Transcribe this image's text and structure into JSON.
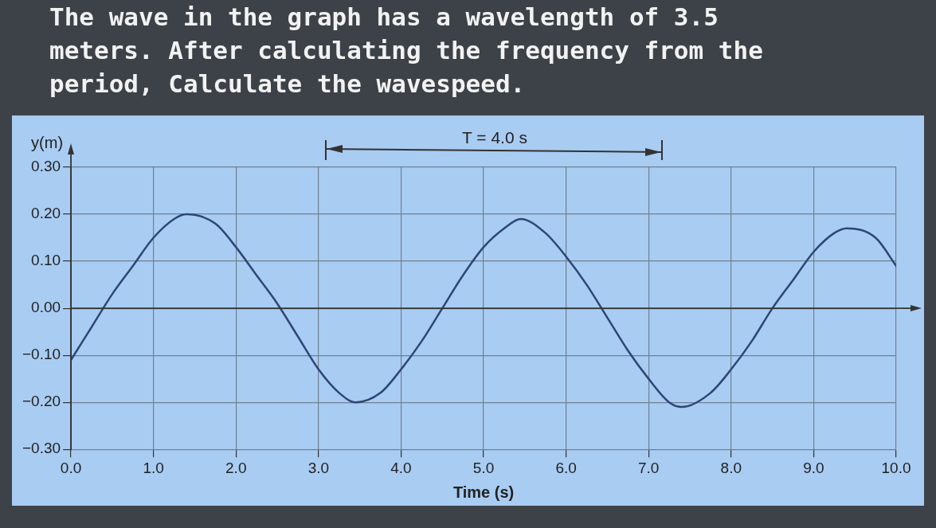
{
  "chart_data": {
    "type": "line",
    "title": "The wave in the graph has a wavelength of 3.5 meters. After calculating the frequency from the period, Calculate the wavespeed.",
    "xlabel": "Time (s)",
    "ylabel": "y(m)",
    "annotations": [
      "T = 4.0 s"
    ],
    "x": [
      0,
      0.25,
      0.5,
      0.75,
      1.0,
      1.25,
      1.4,
      1.75,
      2.0,
      2.25,
      2.5,
      2.75,
      3.0,
      3.25,
      3.45,
      3.75,
      4.0,
      4.25,
      4.5,
      4.75,
      5.0,
      5.25,
      5.45,
      5.75,
      6.0,
      6.25,
      6.5,
      6.75,
      7.0,
      7.25,
      7.4,
      7.75,
      8.0,
      8.25,
      8.5,
      8.75,
      9.0,
      9.25,
      9.4,
      9.75,
      10.0
    ],
    "series": [
      {
        "color": "#2e4677",
        "values": [
          -0.11,
          -0.04,
          0.03,
          0.09,
          0.15,
          0.19,
          0.2,
          0.18,
          0.13,
          0.07,
          0.01,
          -0.06,
          -0.13,
          -0.18,
          -0.2,
          -0.18,
          -0.13,
          -0.07,
          0.0,
          0.07,
          0.13,
          0.17,
          0.19,
          0.16,
          0.11,
          0.05,
          -0.02,
          -0.09,
          -0.15,
          -0.2,
          -0.21,
          -0.18,
          -0.13,
          -0.07,
          0.0,
          0.06,
          0.12,
          0.16,
          0.17,
          0.15,
          0.09
        ]
      }
    ],
    "xlim": [
      0,
      10
    ],
    "xticks": [
      {
        "value": 0,
        "label": "0.0"
      },
      {
        "value": 1,
        "label": "1.0"
      },
      {
        "value": 2,
        "label": "2.0"
      },
      {
        "value": 3,
        "label": "3.0"
      },
      {
        "value": 4,
        "label": "4.0"
      },
      {
        "value": 5,
        "label": "5.0"
      },
      {
        "value": 6,
        "label": "6.0"
      },
      {
        "value": 7,
        "label": "7.0"
      },
      {
        "value": 8,
        "label": "8.0"
      },
      {
        "value": 9,
        "label": "9.0"
      },
      {
        "value": 10,
        "label": "10.0"
      }
    ],
    "ylim": [
      -0.3,
      0.3
    ],
    "yticks": [
      {
        "value": -0.3,
        "label": "−0.30"
      },
      {
        "value": -0.2,
        "label": "−0.20"
      },
      {
        "value": -0.1,
        "label": "−0.10"
      },
      {
        "value": 0,
        "label": "0.00"
      },
      {
        "value": 0.1,
        "label": "0.10"
      },
      {
        "value": 0.2,
        "label": "0.20"
      },
      {
        "value": 0.3,
        "label": "0.30"
      }
    ],
    "grid": true,
    "marker": "none",
    "line_style": "solid"
  }
}
